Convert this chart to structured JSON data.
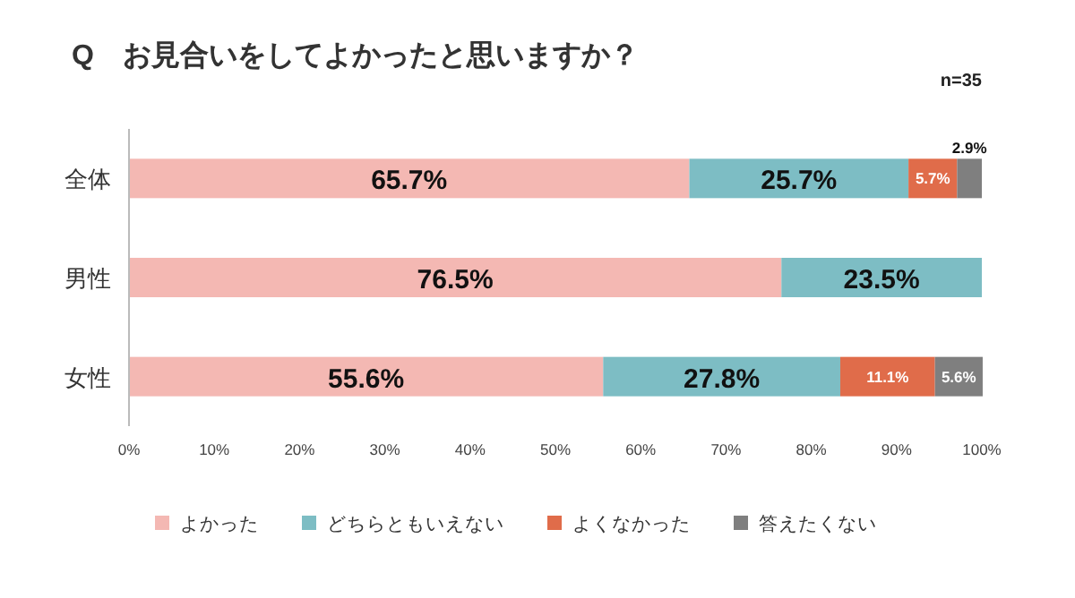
{
  "chart_data": {
    "type": "bar",
    "orientation": "horizontal",
    "stacked": true,
    "title": "Q　お見合いをしてよかったと思いますか？",
    "annotations": [
      "n=35"
    ],
    "categories": [
      "全体",
      "男性",
      "女性"
    ],
    "series": [
      {
        "name": "よかった",
        "color": "#f4b8b3",
        "values": [
          65.7,
          76.5,
          55.6
        ],
        "value_labels": [
          "65.7%",
          "76.5%",
          "55.6%"
        ]
      },
      {
        "name": "どちらともいえない",
        "color": "#7dbdc4",
        "values": [
          25.7,
          23.5,
          27.8
        ],
        "value_labels": [
          "25.7%",
          "23.5%",
          "27.8%"
        ]
      },
      {
        "name": "よくなかった",
        "color": "#e06c4a",
        "values": [
          5.7,
          0,
          11.1
        ],
        "value_labels": [
          "5.7%",
          null,
          "11.1%"
        ]
      },
      {
        "name": "答えたくない",
        "color": "#7f7f7f",
        "values": [
          2.9,
          0,
          5.6
        ],
        "value_labels": [
          "2.9%",
          null,
          "5.6%"
        ]
      }
    ],
    "xlim": [
      0,
      100
    ],
    "xticks": [
      {
        "value": 0,
        "label": "0%"
      },
      {
        "value": 10,
        "label": "10%"
      },
      {
        "value": 20,
        "label": "20%"
      },
      {
        "value": 30,
        "label": "30%"
      },
      {
        "value": 40,
        "label": "40%"
      },
      {
        "value": 50,
        "label": "50%"
      },
      {
        "value": 60,
        "label": "60%"
      },
      {
        "value": 70,
        "label": "70%"
      },
      {
        "value": 80,
        "label": "80%"
      },
      {
        "value": 90,
        "label": "90%"
      },
      {
        "value": 100,
        "label": "100%"
      }
    ],
    "legend": "bottom"
  }
}
